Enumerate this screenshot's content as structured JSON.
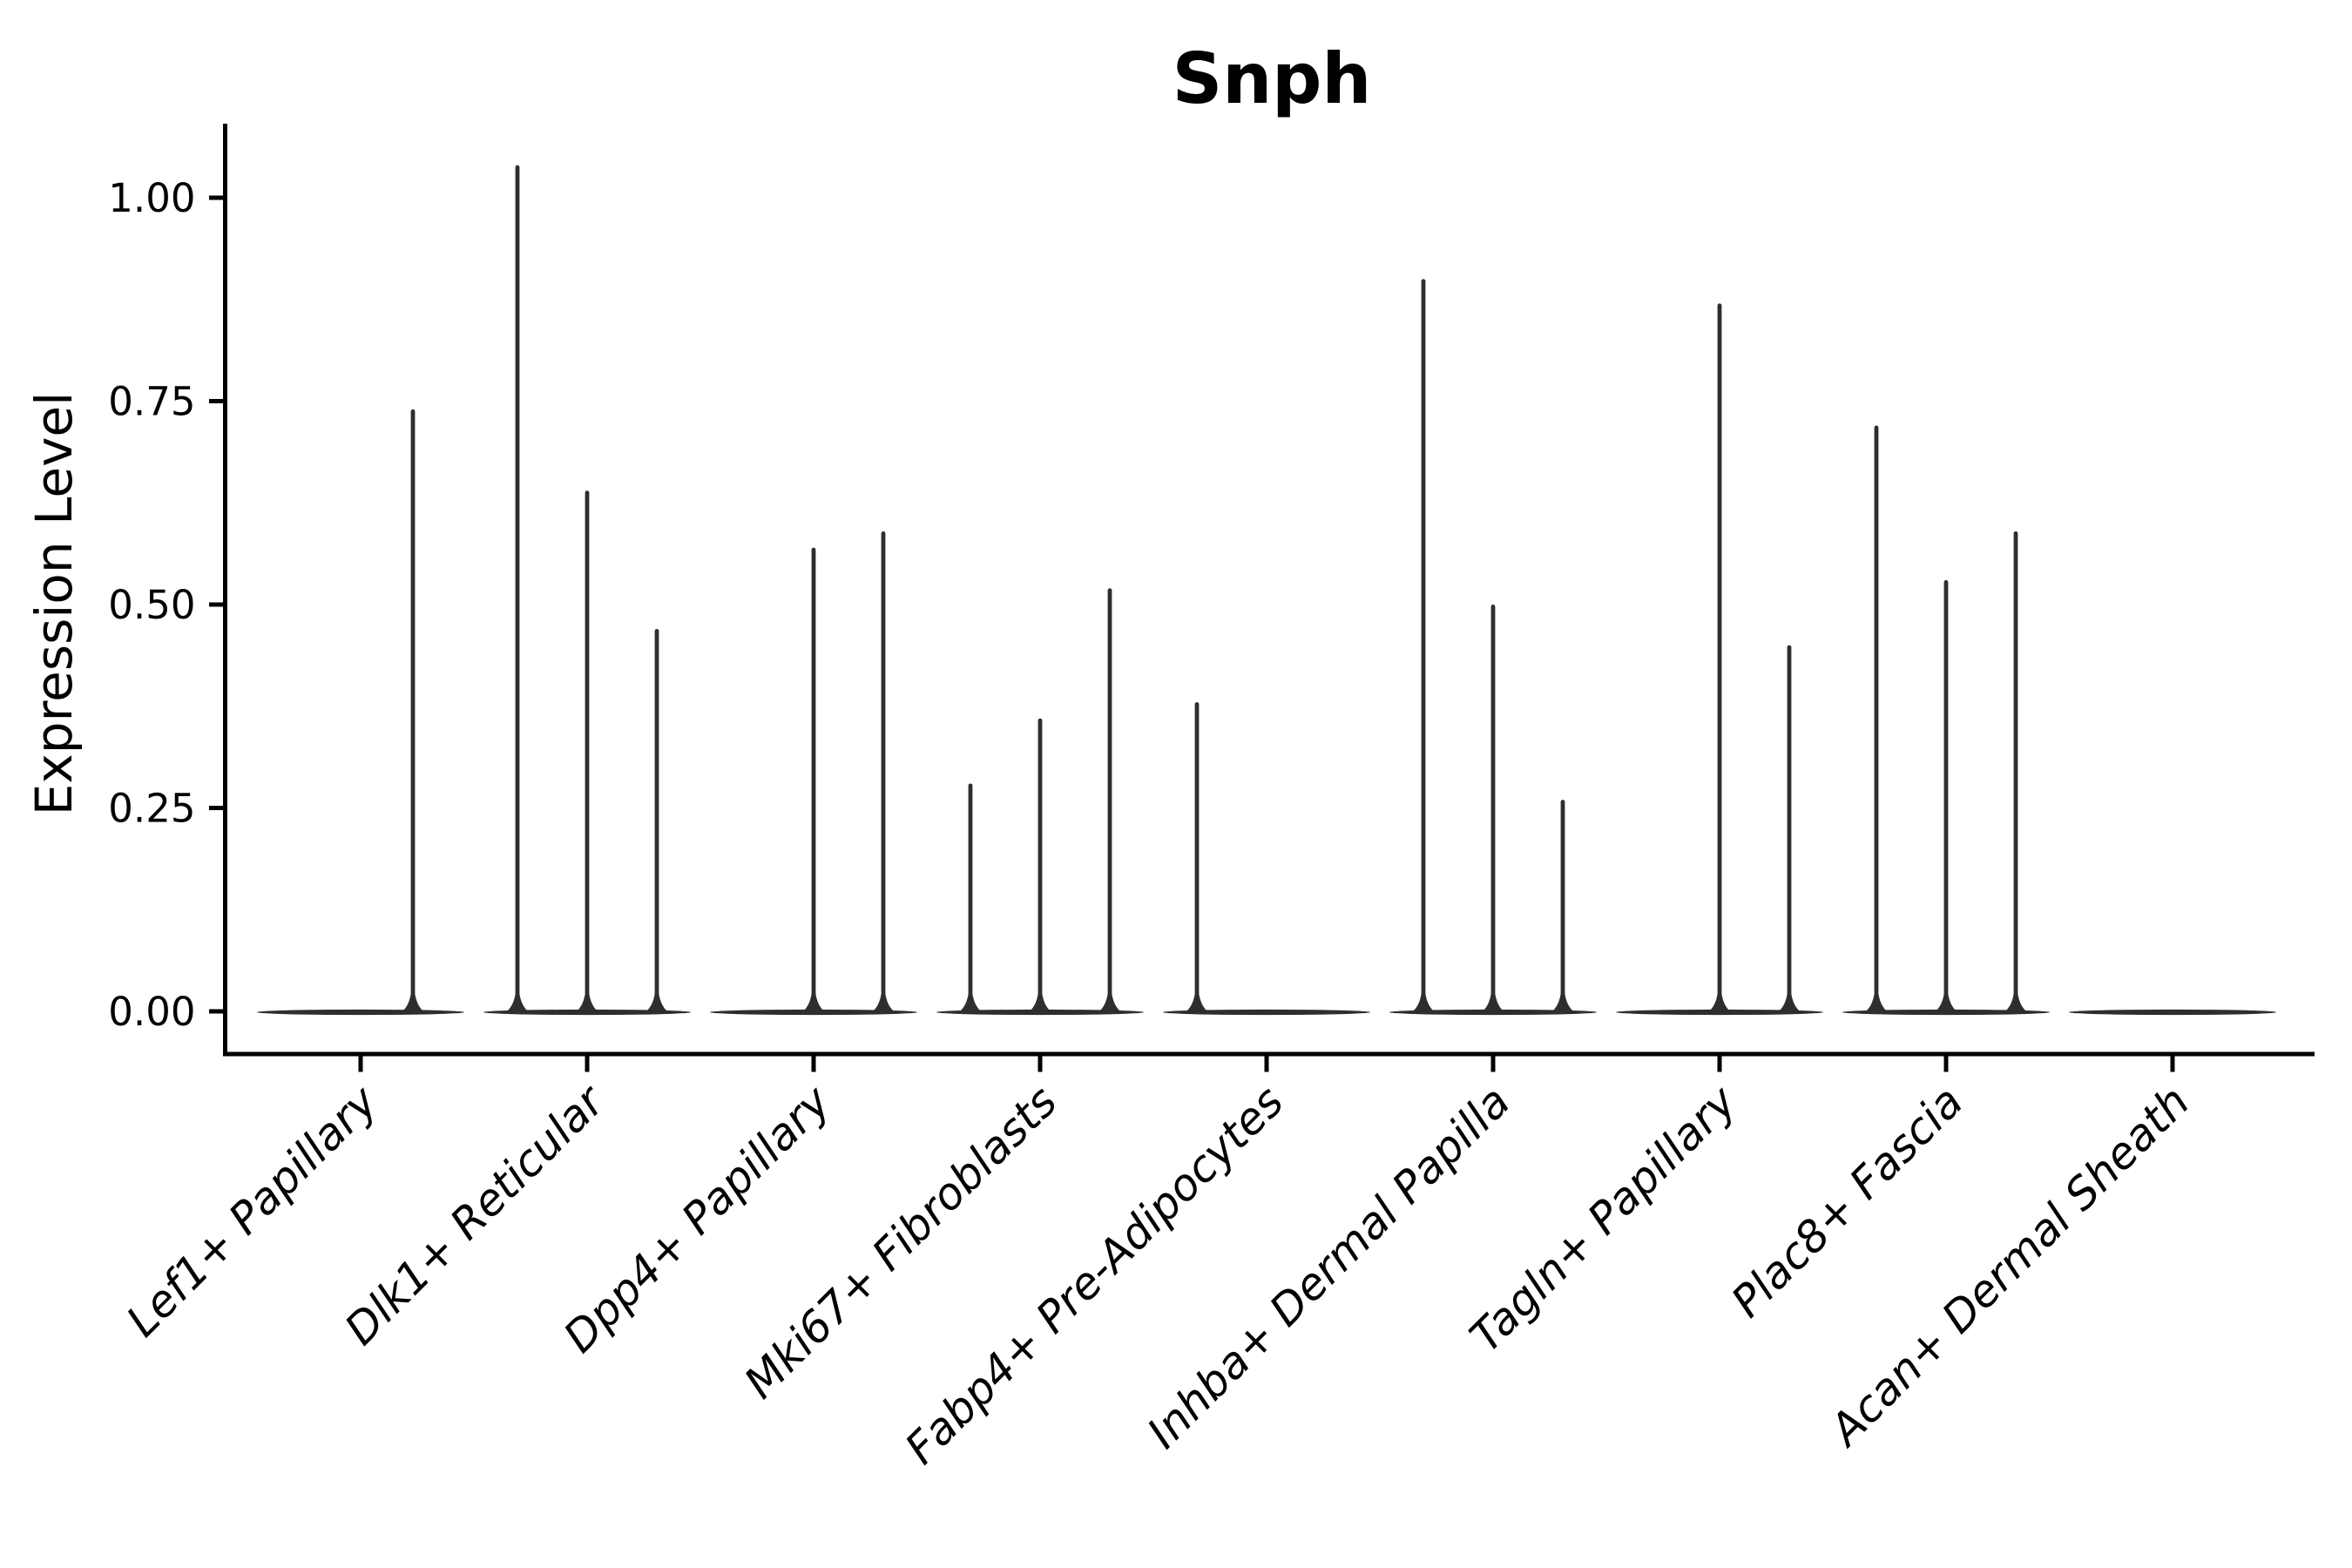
{
  "chart_data": {
    "type": "violin",
    "title": "Snph",
    "xlabel": "",
    "ylabel": "Expression Level",
    "ylim": [
      0,
      1.09
    ],
    "grid": false,
    "legend": "none",
    "yticks": [
      {
        "label": "1.00",
        "value": 1.0
      },
      {
        "label": "0.75",
        "value": 0.75
      },
      {
        "label": "0.50",
        "value": 0.5
      },
      {
        "label": "0.25",
        "value": 0.25
      },
      {
        "label": "0.00",
        "value": 0.0
      }
    ],
    "categories": [
      "Lef1+ Papillary",
      "Dlk1+ Reticular",
      "Dpp4+ Papillary",
      "Mki67+ Fibroblasts",
      "Fabp4+ Pre-Adipocytes",
      "Inhba+ Dermal Papilla",
      "Tagln+ Papillary",
      "Plac8+ Fascia",
      "Acan+ Dermal Sheath"
    ],
    "series": [
      {
        "category": "Lef1+ Papillary",
        "violins": [
          {
            "slot": 0.75,
            "max": 0.74
          }
        ]
      },
      {
        "category": "Dlk1+ Reticular",
        "violins": [
          {
            "slot": -1,
            "max": 1.04
          },
          {
            "slot": 0,
            "max": 0.64
          },
          {
            "slot": 1,
            "max": 0.47
          }
        ]
      },
      {
        "category": "Dpp4+ Papillary",
        "violins": [
          {
            "slot": 0,
            "max": 0.57
          },
          {
            "slot": 1,
            "max": 0.59
          }
        ]
      },
      {
        "category": "Mki67+ Fibroblasts",
        "violins": [
          {
            "slot": -1,
            "max": 0.28
          },
          {
            "slot": 0,
            "max": 0.36
          },
          {
            "slot": 1,
            "max": 0.52
          }
        ]
      },
      {
        "category": "Fabp4+ Pre-Adipocytes",
        "violins": [
          {
            "slot": -1,
            "max": 0.38
          }
        ]
      },
      {
        "category": "Inhba+ Dermal Papilla",
        "violins": [
          {
            "slot": -1,
            "max": 0.9
          },
          {
            "slot": 0,
            "max": 0.5
          },
          {
            "slot": 1,
            "max": 0.26
          }
        ]
      },
      {
        "category": "Tagln+ Papillary",
        "violins": [
          {
            "slot": 0,
            "max": 0.87
          },
          {
            "slot": 1,
            "max": 0.45
          }
        ]
      },
      {
        "category": "Plac8+ Fascia",
        "violins": [
          {
            "slot": -1,
            "max": 0.72
          },
          {
            "slot": 0,
            "max": 0.53
          },
          {
            "slot": 1,
            "max": 0.59
          }
        ]
      },
      {
        "category": "Acan+ Dermal Sheath",
        "violins": []
      }
    ],
    "all_violins_flat_at_zero": true,
    "colors": {
      "violin_ink": "#2e2e2e",
      "axis": "#000000",
      "text": "#000000",
      "background": "#ffffff"
    }
  }
}
